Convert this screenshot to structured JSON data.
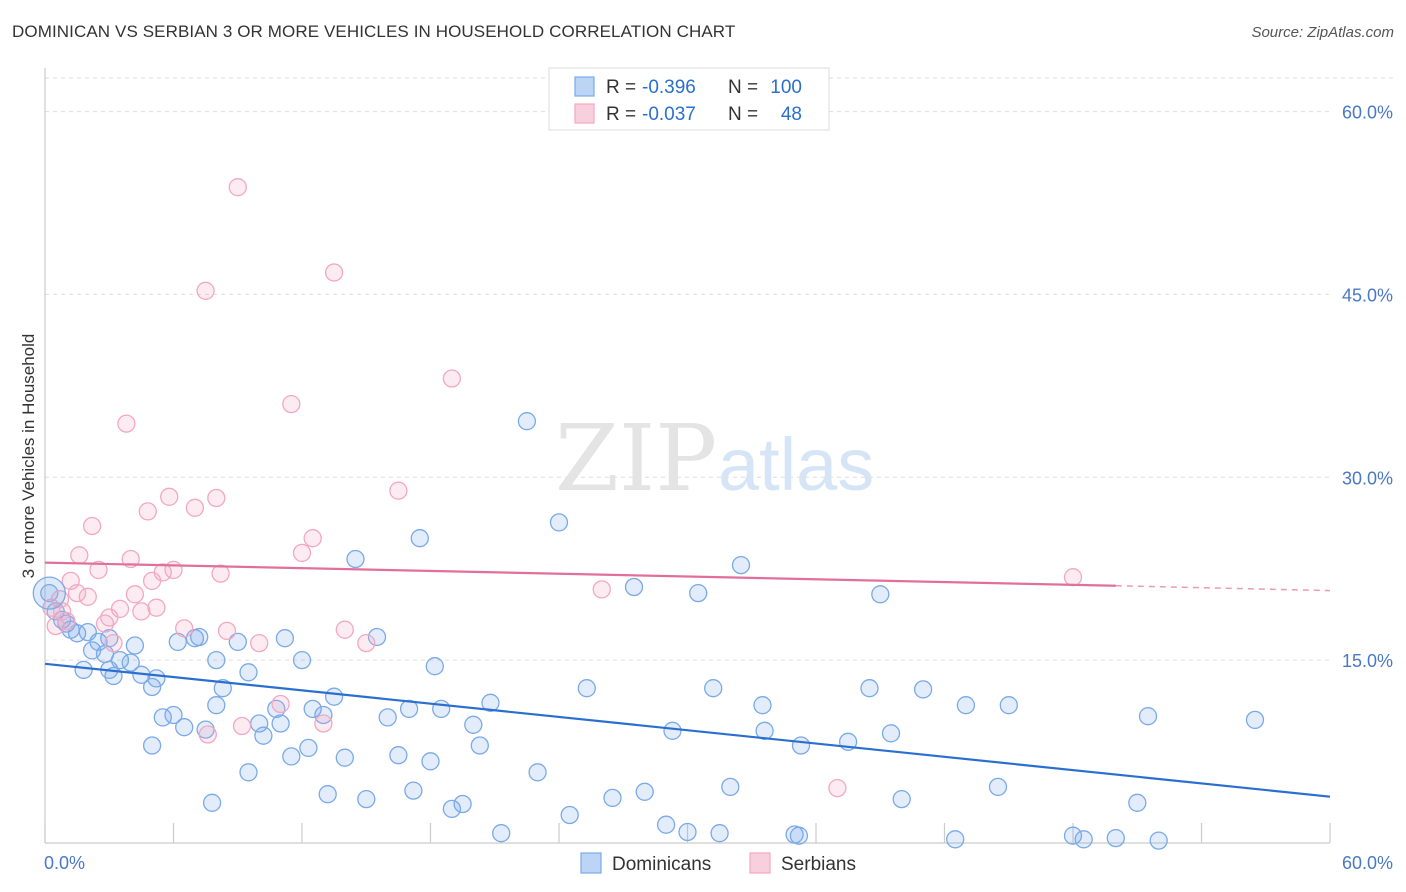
{
  "title": "DOMINICAN VS SERBIAN 3 OR MORE VEHICLES IN HOUSEHOLD CORRELATION CHART",
  "source": "Source: ZipAtlas.com",
  "watermark": {
    "zip": "ZIP",
    "atlas": "atlas"
  },
  "legend_top": [
    {
      "r_label": "R =",
      "r_value": "-0.396",
      "n_label": "N =",
      "n_value": "100"
    },
    {
      "r_label": "R =",
      "r_value": "-0.037",
      "n_label": "N =",
      "n_value": "48"
    }
  ],
  "chart_data": {
    "type": "scatter",
    "title": "DOMINICAN VS SERBIAN 3 OR MORE VEHICLES IN HOUSEHOLD CORRELATION CHART",
    "xlabel": "",
    "ylabel": "3 or more Vehicles in Household",
    "xlim": [
      0,
      60
    ],
    "ylim": [
      0,
      63
    ],
    "x_tick_labels": [
      "0.0%",
      "60.0%"
    ],
    "y_ticks": [
      15,
      30,
      45,
      60
    ],
    "y_tick_labels": [
      "15.0%",
      "30.0%",
      "45.0%",
      "60.0%"
    ],
    "grid": true,
    "legend_position": "bottom",
    "series": [
      {
        "name": "Dominicans",
        "color": "#7aaae8",
        "line_color": "#2a6fd0",
        "R": -0.396,
        "N": 100,
        "trend": {
          "x": [
            0,
            60
          ],
          "y": [
            14.7,
            3.8
          ]
        },
        "points": [
          [
            0.2,
            20.5
          ],
          [
            0.5,
            19.0
          ],
          [
            0.8,
            18.3
          ],
          [
            1.0,
            18.0
          ],
          [
            1.2,
            17.5
          ],
          [
            1.5,
            17.2
          ],
          [
            2.0,
            17.3
          ],
          [
            2.5,
            16.5
          ],
          [
            2.8,
            15.5
          ],
          [
            3.0,
            16.8
          ],
          [
            1.8,
            14.2
          ],
          [
            3.2,
            13.7
          ],
          [
            3.5,
            15.0
          ],
          [
            4.0,
            14.8
          ],
          [
            4.5,
            13.8
          ],
          [
            5.0,
            12.8
          ],
          [
            5.2,
            13.5
          ],
          [
            5.5,
            10.3
          ],
          [
            6.0,
            10.5
          ],
          [
            6.2,
            16.5
          ],
          [
            4.2,
            16.2
          ],
          [
            7.0,
            16.8
          ],
          [
            6.5,
            9.5
          ],
          [
            7.5,
            9.3
          ],
          [
            8.0,
            11.3
          ],
          [
            8.3,
            12.7
          ],
          [
            9.0,
            16.5
          ],
          [
            9.5,
            14.0
          ],
          [
            10.0,
            9.8
          ],
          [
            10.2,
            8.8
          ],
          [
            10.8,
            11.0
          ],
          [
            11.0,
            9.8
          ],
          [
            11.2,
            16.8
          ],
          [
            11.5,
            7.1
          ],
          [
            12.0,
            15.0
          ],
          [
            12.3,
            7.8
          ],
          [
            12.5,
            11.0
          ],
          [
            13.0,
            10.5
          ],
          [
            13.5,
            12.0
          ],
          [
            14.0,
            7.0
          ],
          [
            14.5,
            23.3
          ],
          [
            15.0,
            3.6
          ],
          [
            15.5,
            16.9
          ],
          [
            16.0,
            10.3
          ],
          [
            16.5,
            7.2
          ],
          [
            17.0,
            11.0
          ],
          [
            17.2,
            4.3
          ],
          [
            17.5,
            25.0
          ],
          [
            18.0,
            6.7
          ],
          [
            18.2,
            14.5
          ],
          [
            18.5,
            11.0
          ],
          [
            19.0,
            2.8
          ],
          [
            19.5,
            3.2
          ],
          [
            20.0,
            9.7
          ],
          [
            20.3,
            8.0
          ],
          [
            20.8,
            11.5
          ],
          [
            21.3,
            0.8
          ],
          [
            22.5,
            34.6
          ],
          [
            23.0,
            5.8
          ],
          [
            24.0,
            26.3
          ],
          [
            24.5,
            2.3
          ],
          [
            25.3,
            12.7
          ],
          [
            26.5,
            3.7
          ],
          [
            27.5,
            21.0
          ],
          [
            28.0,
            4.2
          ],
          [
            29.0,
            1.5
          ],
          [
            29.3,
            9.2
          ],
          [
            30.0,
            0.9
          ],
          [
            30.5,
            20.5
          ],
          [
            31.2,
            12.7
          ],
          [
            31.5,
            0.8
          ],
          [
            32.0,
            4.6
          ],
          [
            32.5,
            22.8
          ],
          [
            33.5,
            11.3
          ],
          [
            33.6,
            9.2
          ],
          [
            35.0,
            0.7
          ],
          [
            35.2,
            0.6
          ],
          [
            35.3,
            8.0
          ],
          [
            37.5,
            8.3
          ],
          [
            38.5,
            12.7
          ],
          [
            39.0,
            20.4
          ],
          [
            39.5,
            9.0
          ],
          [
            40.0,
            3.6
          ],
          [
            41.0,
            12.6
          ],
          [
            42.5,
            0.3
          ],
          [
            43.0,
            11.3
          ],
          [
            44.5,
            4.6
          ],
          [
            45.0,
            11.3
          ],
          [
            48.0,
            0.6
          ],
          [
            48.5,
            0.3
          ],
          [
            50.0,
            0.4
          ],
          [
            51.0,
            3.3
          ],
          [
            51.5,
            10.4
          ],
          [
            52.0,
            0.2
          ],
          [
            56.5,
            10.1
          ],
          [
            7.8,
            3.3
          ],
          [
            5.0,
            8.0
          ],
          [
            8.0,
            15.0
          ],
          [
            13.2,
            4.0
          ],
          [
            9.5,
            5.8
          ],
          [
            7.2,
            16.9
          ],
          [
            3.0,
            14.2
          ],
          [
            2.2,
            15.8
          ]
        ]
      },
      {
        "name": "Serbians",
        "color": "#f2a8c2",
        "line_color": "#e0709a",
        "R": -0.037,
        "N": 48,
        "trend": {
          "x": [
            0,
            50
          ],
          "y": [
            23.0,
            21.1
          ]
        },
        "trend_dashed": {
          "x": [
            50,
            60
          ],
          "y": [
            21.1,
            20.7
          ]
        },
        "points": [
          [
            0.3,
            19.3
          ],
          [
            0.5,
            17.8
          ],
          [
            0.7,
            20.0
          ],
          [
            0.8,
            19.0
          ],
          [
            1.0,
            18.2
          ],
          [
            1.2,
            21.5
          ],
          [
            1.5,
            20.5
          ],
          [
            1.6,
            23.6
          ],
          [
            2.0,
            20.2
          ],
          [
            2.2,
            26.0
          ],
          [
            2.5,
            22.4
          ],
          [
            2.8,
            18.0
          ],
          [
            3.0,
            18.5
          ],
          [
            3.2,
            16.4
          ],
          [
            3.5,
            19.2
          ],
          [
            3.8,
            34.4
          ],
          [
            4.0,
            23.3
          ],
          [
            4.2,
            20.4
          ],
          [
            4.5,
            19.0
          ],
          [
            4.8,
            27.2
          ],
          [
            5.0,
            21.5
          ],
          [
            5.2,
            19.3
          ],
          [
            5.5,
            22.2
          ],
          [
            5.8,
            28.4
          ],
          [
            6.0,
            22.4
          ],
          [
            6.5,
            17.6
          ],
          [
            7.0,
            27.5
          ],
          [
            7.5,
            45.3
          ],
          [
            7.6,
            8.9
          ],
          [
            8.0,
            28.3
          ],
          [
            8.2,
            22.1
          ],
          [
            8.5,
            17.4
          ],
          [
            9.0,
            53.8
          ],
          [
            9.2,
            9.6
          ],
          [
            10.0,
            16.4
          ],
          [
            11.0,
            11.4
          ],
          [
            11.5,
            36.0
          ],
          [
            12.0,
            23.8
          ],
          [
            12.5,
            25.0
          ],
          [
            13.0,
            9.8
          ],
          [
            13.5,
            46.8
          ],
          [
            14.0,
            17.5
          ],
          [
            15.0,
            16.4
          ],
          [
            16.5,
            28.9
          ],
          [
            19.0,
            38.1
          ],
          [
            26.0,
            20.8
          ],
          [
            37.0,
            4.5
          ],
          [
            48.0,
            21.8
          ]
        ]
      }
    ]
  }
}
